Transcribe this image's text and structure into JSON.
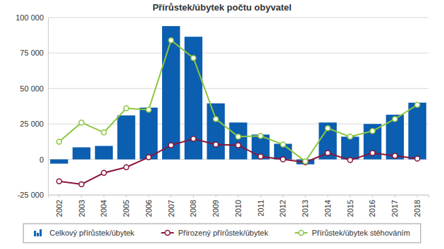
{
  "chart_data": {
    "type": "bar",
    "title": "Přírůstek/úbytek počtu obyvatel",
    "categories": [
      "2002",
      "2003",
      "2004",
      "2005",
      "2006",
      "2007",
      "2008",
      "2009",
      "2010",
      "2011",
      "2012",
      "2013",
      "2014",
      "2015",
      "2016",
      "2017",
      "2018"
    ],
    "series": [
      {
        "name": "Celkový přírůstek/úbytek",
        "type": "bar",
        "color": "#0b5eb0",
        "values": [
          -3000,
          8500,
          9500,
          31000,
          36500,
          94000,
          86500,
          39500,
          26000,
          17500,
          11000,
          -3500,
          26000,
          16000,
          25000,
          31500,
          40000
        ]
      },
      {
        "name": "Přirozený přírůstek/úbytek",
        "type": "line",
        "color": "#8b1538",
        "marker": "circle",
        "values": [
          -15500,
          -17500,
          -9500,
          -5500,
          1500,
          10000,
          14500,
          10500,
          10000,
          2000,
          0,
          -2000,
          4500,
          -500,
          4500,
          2500,
          500
        ]
      },
      {
        "name": "Přírůstek/úbytek stěhováním",
        "type": "line",
        "color": "#8cc63f",
        "marker": "circle",
        "values": [
          12500,
          26000,
          19000,
          36000,
          35000,
          84000,
          71500,
          28500,
          16000,
          16500,
          10500,
          -1500,
          22000,
          16000,
          20000,
          28500,
          38500
        ]
      }
    ],
    "ylim": [
      -25000,
      100000
    ],
    "yticks": [
      {
        "value": -25000,
        "label": "-25 000"
      },
      0,
      {
        "value": 25000,
        "label": "25 000"
      },
      {
        "value": 50000,
        "label": "50 000"
      },
      {
        "value": 75000,
        "label": "75 000"
      },
      {
        "value": 100000,
        "label": "100 000"
      }
    ],
    "grid": true,
    "legend": "bottom"
  }
}
